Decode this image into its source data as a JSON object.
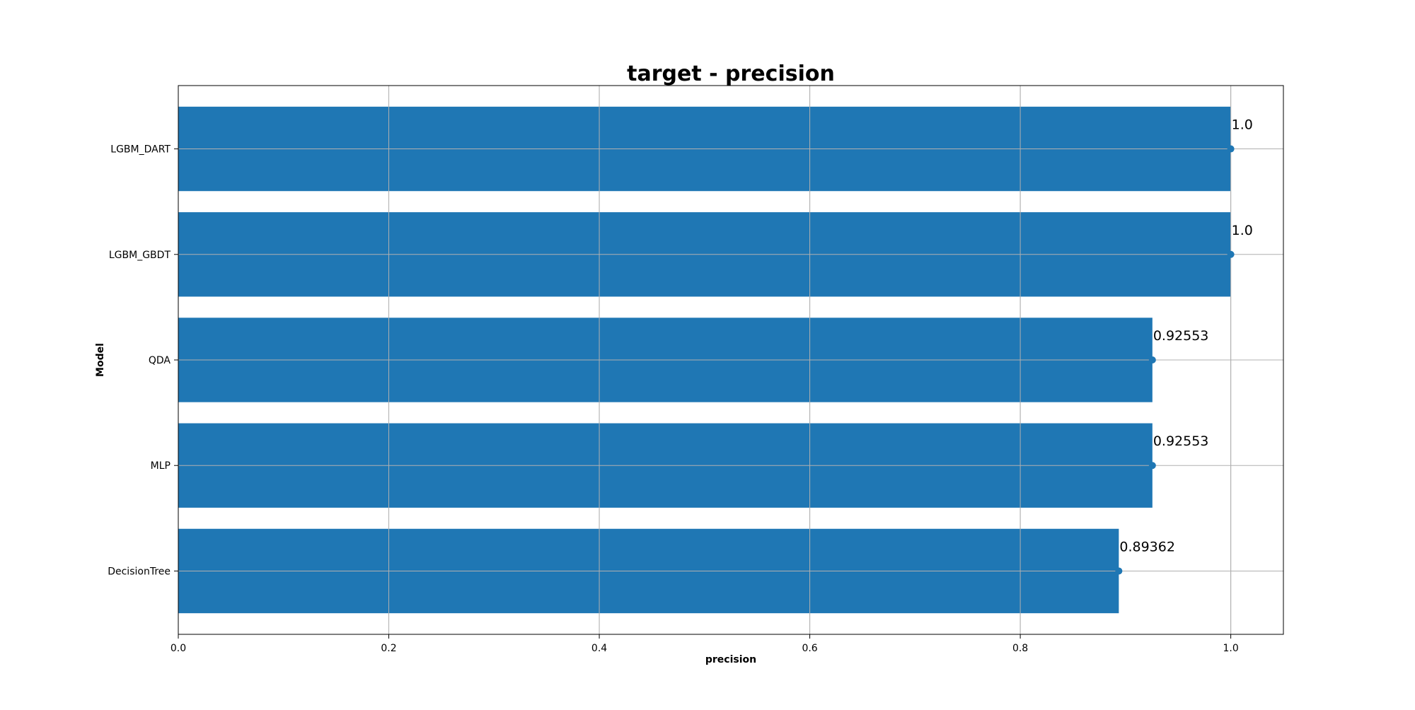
{
  "chart_data": {
    "type": "bar",
    "orientation": "horizontal",
    "title": "target - precision",
    "xlabel": "precision",
    "ylabel": "Model",
    "categories": [
      "LGBM_DART",
      "LGBM_GBDT",
      "QDA",
      "MLP",
      "DecisionTree"
    ],
    "values": [
      1.0,
      1.0,
      0.92553,
      0.92553,
      0.89362
    ],
    "data_labels": [
      "1.0",
      "1.0",
      "0.92553",
      "0.92553",
      "0.89362"
    ],
    "xlim": [
      0,
      1.05
    ],
    "xticks": [
      0.0,
      0.2,
      0.4,
      0.6,
      0.8,
      1.0
    ],
    "xtick_labels": [
      "0.0",
      "0.2",
      "0.4",
      "0.6",
      "0.8",
      "1.0"
    ],
    "grid": true,
    "colors": {
      "bar": "#1f77b4",
      "marker": "#1f77b4",
      "grid": "#b0b0b0"
    }
  }
}
